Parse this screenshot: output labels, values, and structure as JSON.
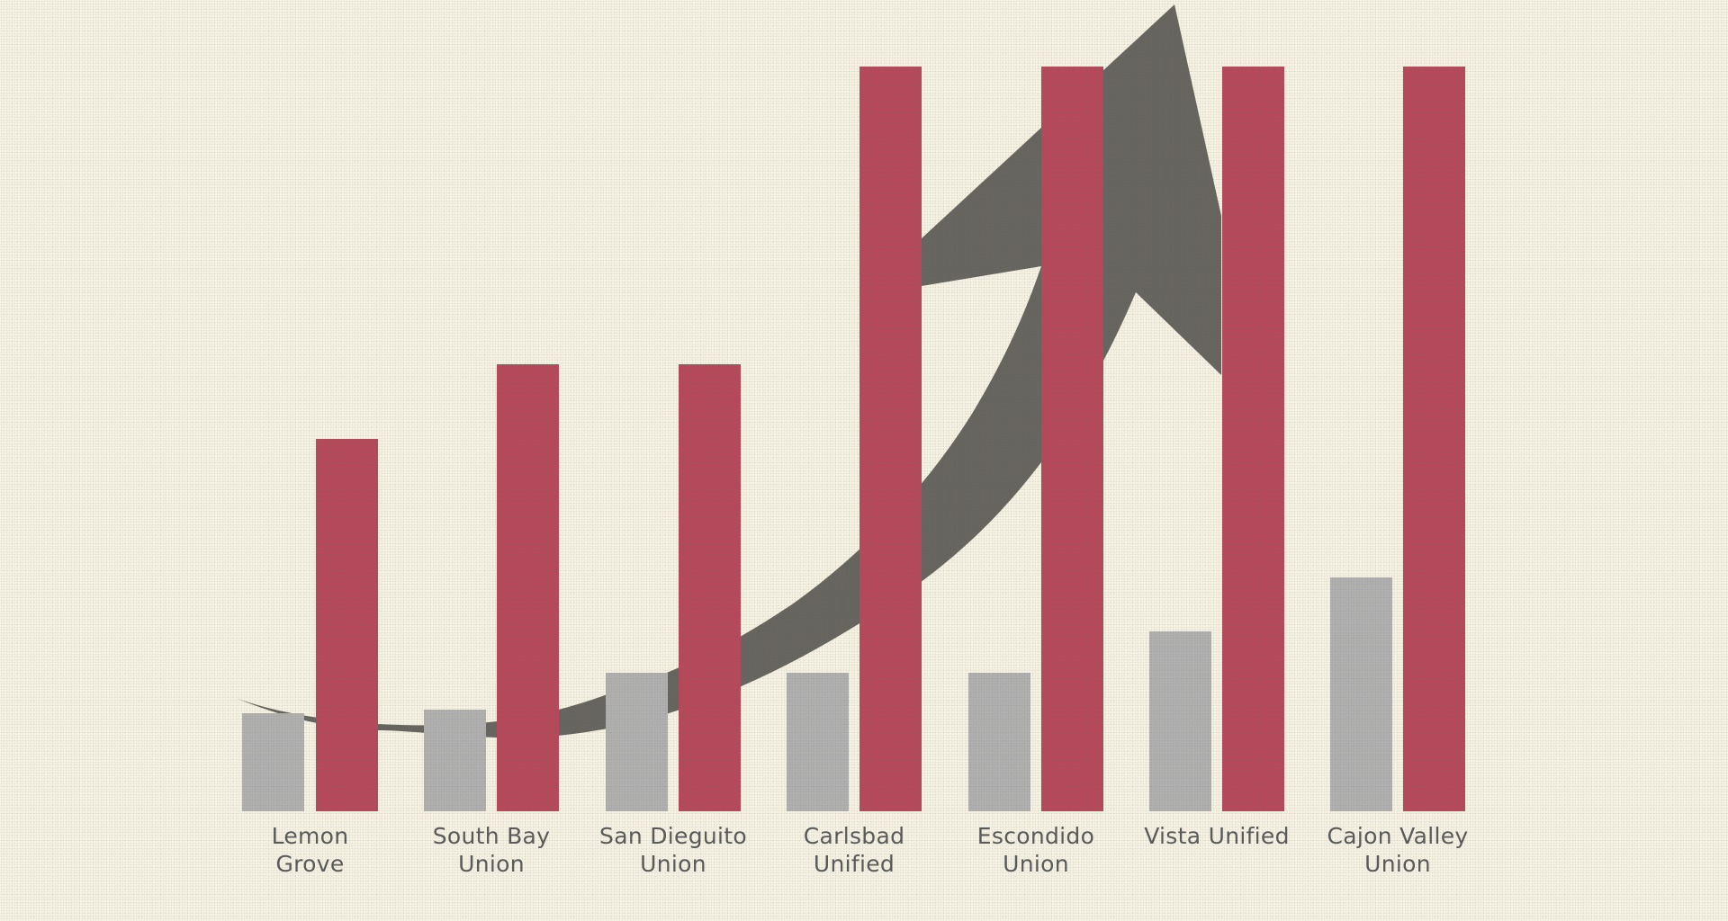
{
  "chart_data": {
    "type": "bar",
    "title": "",
    "xlabel": "",
    "ylabel": "",
    "grid": false,
    "legend": null,
    "axes_visible": false,
    "categories": [
      "Lemon Grove",
      "South Bay Union",
      "San Dieguito Union",
      "Carlsbad Unified",
      "Escondido Union",
      "Vista Unified",
      "Cajon Valley Union"
    ],
    "category_label_lines": [
      [
        "Lemon",
        "Grove"
      ],
      [
        "South Bay",
        "Union"
      ],
      [
        "San Dieguito",
        "Union"
      ],
      [
        "Carlsbad",
        "Unified"
      ],
      [
        "Escondido",
        "Union"
      ],
      [
        "Vista Unified",
        ""
      ],
      [
        "Cajon Valley",
        "Union"
      ]
    ],
    "series": [
      {
        "name": "gray series",
        "color": "#b0b0b0",
        "values": [
          109,
          113,
          154,
          154,
          154,
          200,
          260
        ]
      },
      {
        "name": "red series",
        "color": "#b5485a",
        "values": [
          414,
          497,
          497,
          828,
          828,
          828,
          828
        ]
      }
    ],
    "value_units": "relative bar height (no axis shown)",
    "ylim": [
      0,
      828
    ],
    "annotations": [
      {
        "type": "arrow",
        "description": "Large dark gray upward-curving trend arrow rising from lower-left to upper-right",
        "color": "#66645e"
      }
    ]
  },
  "colors": {
    "background": "#f5f2e3",
    "gray_bar": "#b0b0b0",
    "red_bar": "#b5485a",
    "arrow": "#66645e",
    "label_text": "#5a5a5a"
  }
}
